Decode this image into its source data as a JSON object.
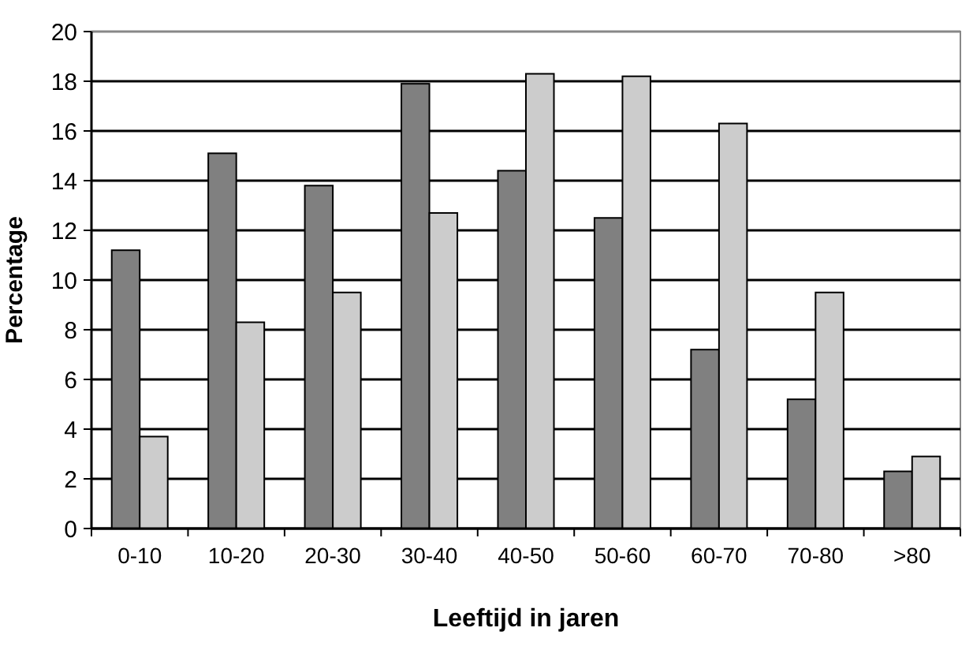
{
  "chart_data": {
    "type": "bar",
    "xlabel": "Leeftijd in jaren",
    "ylabel": "Percentage",
    "categories": [
      "0-10",
      "10-20",
      "20-30",
      "30-40",
      "40-50",
      "50-60",
      "60-70",
      "70-80",
      ">80"
    ],
    "series": [
      {
        "color": "#808080",
        "values": [
          11.2,
          15.1,
          13.8,
          17.9,
          14.4,
          12.5,
          7.2,
          5.2,
          2.3
        ]
      },
      {
        "color": "#cccccc",
        "values": [
          3.7,
          8.3,
          9.5,
          12.7,
          18.3,
          18.2,
          16.3,
          9.5,
          2.9
        ]
      }
    ],
    "ylim": [
      0,
      20
    ],
    "yticks": [
      0,
      2,
      4,
      6,
      8,
      10,
      12,
      14,
      16,
      18,
      20
    ],
    "grid": "y"
  }
}
